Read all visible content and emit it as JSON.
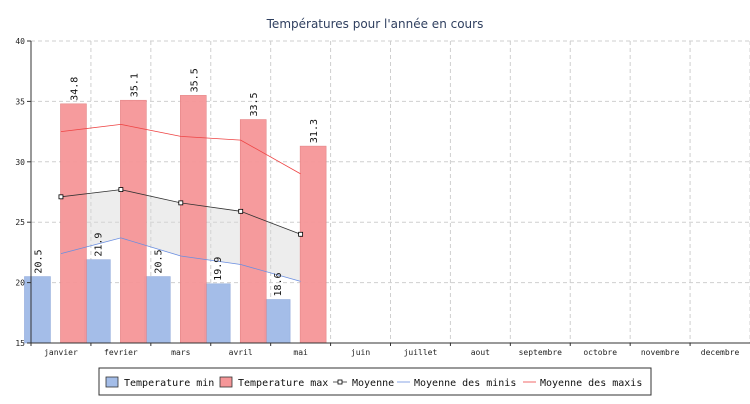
{
  "chart_data": {
    "type": "bar",
    "title": "Températures pour l'année en cours",
    "categories": [
      "janvier",
      "fevrier",
      "mars",
      "avril",
      "mai",
      "juin",
      "juillet",
      "aout",
      "septembre",
      "octobre",
      "novembre",
      "decembre"
    ],
    "ylim": [
      15,
      40
    ],
    "yticks": [
      15,
      20,
      25,
      30,
      35,
      40
    ],
    "grid": true,
    "legend_position": "bottom",
    "series": [
      {
        "name": "Temperature min",
        "kind": "bar",
        "color": "#a4bde8",
        "values": [
          20.5,
          21.9,
          20.5,
          19.9,
          18.6,
          null,
          null,
          null,
          null,
          null,
          null,
          null
        ]
      },
      {
        "name": "Temperature max",
        "kind": "bar",
        "color": "#f59698",
        "values": [
          34.8,
          35.1,
          35.5,
          33.5,
          31.3,
          null,
          null,
          null,
          null,
          null,
          null,
          null
        ]
      },
      {
        "name": "Moyenne",
        "kind": "line",
        "color": "#333333",
        "marker": "square",
        "values": [
          27.1,
          27.7,
          26.6,
          25.9,
          24.0,
          null,
          null,
          null,
          null,
          null,
          null,
          null
        ]
      },
      {
        "name": "Moyenne des minis",
        "kind": "line",
        "color": "#6a8ee0",
        "values": [
          22.4,
          23.7,
          22.2,
          21.5,
          20.1,
          null,
          null,
          null,
          null,
          null,
          null,
          null
        ]
      },
      {
        "name": "Moyenne des maxis",
        "kind": "line",
        "color": "#ee4444",
        "values": [
          32.5,
          33.1,
          32.1,
          31.8,
          29.0,
          null,
          null,
          null,
          null,
          null,
          null,
          null
        ]
      }
    ],
    "value_labels": {
      "min": [
        "20.5",
        "21.9",
        "20.5",
        "19.9",
        "18.6"
      ],
      "max": [
        "34.8",
        "35.1",
        "35.5",
        "33.5",
        "31.3"
      ]
    }
  }
}
